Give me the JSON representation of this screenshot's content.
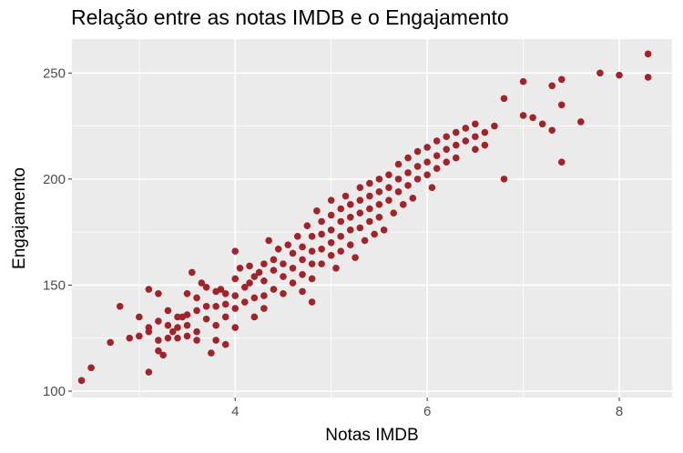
{
  "chart_data": {
    "type": "scatter",
    "title": "Relação entre as notas IMDB e o Engajamento",
    "xlabel": "Notas IMDB",
    "ylabel": "Engajamento",
    "xlim": [
      2.3,
      8.55
    ],
    "ylim": [
      97,
      266
    ],
    "xticks": [
      4,
      6,
      8
    ],
    "yticks": [
      100,
      150,
      200,
      250
    ],
    "x_minor": [
      3,
      5,
      7
    ],
    "y_minor": [
      125,
      175,
      225
    ],
    "grid": true,
    "colors": {
      "point": "#A2242A",
      "panel": "#EBEBEB",
      "grid": "#FFFFFF"
    },
    "points": [
      [
        2.4,
        105
      ],
      [
        2.5,
        111
      ],
      [
        2.7,
        123
      ],
      [
        2.8,
        140
      ],
      [
        2.9,
        125
      ],
      [
        3.0,
        135
      ],
      [
        3.0,
        126
      ],
      [
        3.1,
        130
      ],
      [
        3.1,
        128
      ],
      [
        3.1,
        148
      ],
      [
        3.1,
        109
      ],
      [
        3.2,
        146
      ],
      [
        3.2,
        133
      ],
      [
        3.2,
        124
      ],
      [
        3.2,
        119
      ],
      [
        3.25,
        117
      ],
      [
        3.3,
        138
      ],
      [
        3.3,
        131
      ],
      [
        3.3,
        125
      ],
      [
        3.35,
        128
      ],
      [
        3.4,
        135
      ],
      [
        3.4,
        125
      ],
      [
        3.4,
        130
      ],
      [
        3.45,
        135
      ],
      [
        3.5,
        136
      ],
      [
        3.5,
        146
      ],
      [
        3.5,
        126
      ],
      [
        3.5,
        131
      ],
      [
        3.55,
        156
      ],
      [
        3.6,
        144
      ],
      [
        3.6,
        138
      ],
      [
        3.6,
        128
      ],
      [
        3.6,
        124
      ],
      [
        3.65,
        151
      ],
      [
        3.7,
        149
      ],
      [
        3.7,
        140
      ],
      [
        3.7,
        134
      ],
      [
        3.75,
        118
      ],
      [
        3.8,
        124
      ],
      [
        3.8,
        140
      ],
      [
        3.8,
        147
      ],
      [
        3.8,
        131
      ],
      [
        3.85,
        148
      ],
      [
        3.9,
        122
      ],
      [
        3.9,
        135
      ],
      [
        3.9,
        141
      ],
      [
        3.9,
        146
      ],
      [
        4.0,
        166
      ],
      [
        4.0,
        153
      ],
      [
        4.0,
        145
      ],
      [
        4.0,
        139
      ],
      [
        4.0,
        130
      ],
      [
        4.05,
        158
      ],
      [
        4.1,
        142
      ],
      [
        4.1,
        149
      ],
      [
        4.15,
        159
      ],
      [
        4.15,
        151
      ],
      [
        4.2,
        154
      ],
      [
        4.2,
        144
      ],
      [
        4.2,
        135
      ],
      [
        4.25,
        156
      ],
      [
        4.3,
        160
      ],
      [
        4.3,
        152
      ],
      [
        4.3,
        145
      ],
      [
        4.3,
        139
      ],
      [
        4.35,
        171
      ],
      [
        4.4,
        162
      ],
      [
        4.4,
        157
      ],
      [
        4.4,
        148
      ],
      [
        4.45,
        167
      ],
      [
        4.5,
        160
      ],
      [
        4.5,
        154
      ],
      [
        4.5,
        146
      ],
      [
        4.55,
        169
      ],
      [
        4.6,
        165
      ],
      [
        4.6,
        158
      ],
      [
        4.6,
        151
      ],
      [
        4.65,
        173
      ],
      [
        4.7,
        168
      ],
      [
        4.7,
        162
      ],
      [
        4.7,
        155
      ],
      [
        4.7,
        147
      ],
      [
        4.75,
        178
      ],
      [
        4.8,
        173
      ],
      [
        4.8,
        166
      ],
      [
        4.8,
        160
      ],
      [
        4.8,
        153
      ],
      [
        4.85,
        185
      ],
      [
        4.9,
        180
      ],
      [
        4.9,
        174
      ],
      [
        4.9,
        167
      ],
      [
        4.9,
        160
      ],
      [
        5.0,
        190
      ],
      [
        5.0,
        183
      ],
      [
        5.0,
        176
      ],
      [
        5.0,
        170
      ],
      [
        5.0,
        164
      ],
      [
        5.05,
        158
      ],
      [
        5.1,
        186
      ],
      [
        5.1,
        180
      ],
      [
        5.1,
        173
      ],
      [
        5.1,
        166
      ],
      [
        5.15,
        192
      ],
      [
        5.2,
        188
      ],
      [
        5.2,
        182
      ],
      [
        5.2,
        176
      ],
      [
        5.2,
        169
      ],
      [
        5.25,
        163
      ],
      [
        5.3,
        196
      ],
      [
        5.3,
        190
      ],
      [
        5.3,
        184
      ],
      [
        5.3,
        177
      ],
      [
        5.35,
        171
      ],
      [
        5.4,
        198
      ],
      [
        5.4,
        192
      ],
      [
        5.4,
        186
      ],
      [
        5.4,
        180
      ],
      [
        5.45,
        174
      ],
      [
        5.5,
        200
      ],
      [
        5.5,
        194
      ],
      [
        5.5,
        188
      ],
      [
        5.5,
        182
      ],
      [
        5.55,
        176
      ],
      [
        5.6,
        202
      ],
      [
        5.6,
        196
      ],
      [
        5.6,
        190
      ],
      [
        5.65,
        184
      ],
      [
        5.7,
        207
      ],
      [
        5.7,
        200
      ],
      [
        5.7,
        194
      ],
      [
        5.75,
        188
      ],
      [
        5.8,
        210
      ],
      [
        5.8,
        203
      ],
      [
        5.8,
        197
      ],
      [
        5.85,
        191
      ],
      [
        5.9,
        213
      ],
      [
        5.9,
        206
      ],
      [
        5.9,
        200
      ],
      [
        6.0,
        215
      ],
      [
        6.0,
        208
      ],
      [
        6.0,
        202
      ],
      [
        6.05,
        196
      ],
      [
        6.1,
        218
      ],
      [
        6.1,
        211
      ],
      [
        6.1,
        205
      ],
      [
        6.2,
        220
      ],
      [
        6.2,
        214
      ],
      [
        6.2,
        208
      ],
      [
        6.3,
        222
      ],
      [
        6.3,
        216
      ],
      [
        6.3,
        210
      ],
      [
        6.4,
        224
      ],
      [
        6.4,
        218
      ],
      [
        6.5,
        226
      ],
      [
        6.5,
        220
      ],
      [
        6.5,
        214
      ],
      [
        6.6,
        222
      ],
      [
        6.6,
        216
      ],
      [
        6.7,
        225
      ],
      [
        6.8,
        238
      ],
      [
        6.8,
        200
      ],
      [
        7.0,
        246
      ],
      [
        7.0,
        230
      ],
      [
        7.1,
        229
      ],
      [
        7.2,
        226
      ],
      [
        7.3,
        244
      ],
      [
        7.3,
        223
      ],
      [
        7.4,
        247
      ],
      [
        7.4,
        235
      ],
      [
        7.4,
        208
      ],
      [
        7.6,
        227
      ],
      [
        7.8,
        250
      ],
      [
        8.0,
        249
      ],
      [
        8.3,
        259
      ],
      [
        8.3,
        248
      ],
      [
        4.8,
        142
      ]
    ]
  }
}
